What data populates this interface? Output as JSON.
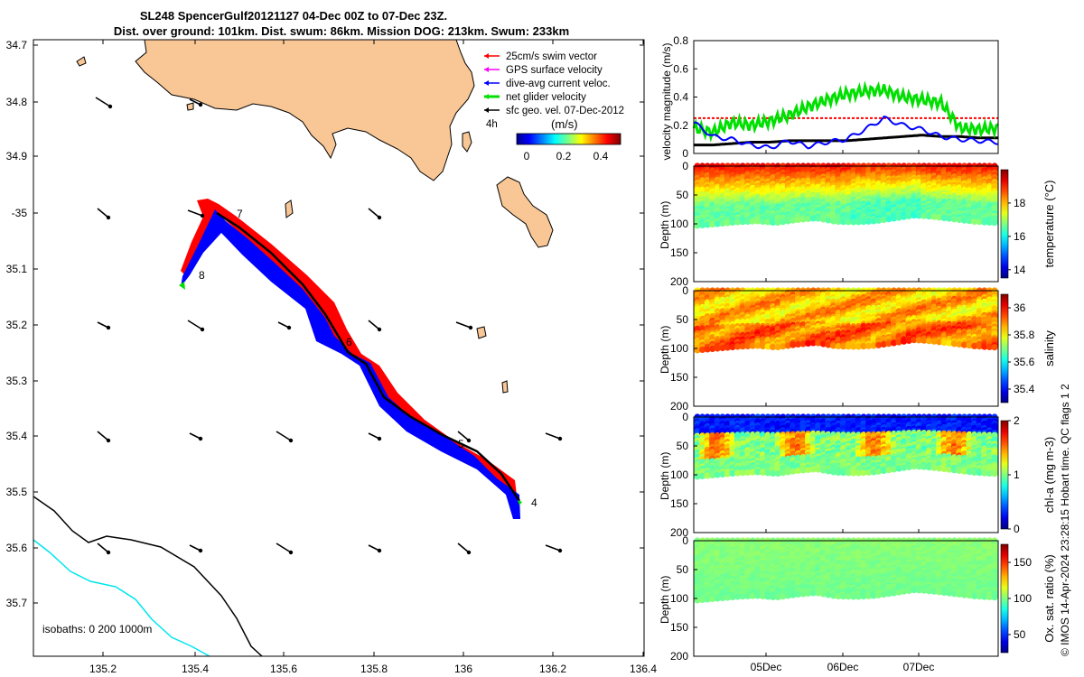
{
  "title": {
    "line1": "SL248 SpencerGulf20121127 04-Dec 00Z to 07-Dec 23Z.",
    "line2": "Dist. over ground: 101km. Dist. swum: 86km. Mission DOG: 213km. Swum: 233km"
  },
  "colors": {
    "land": "#f9c796",
    "swim": "#ff0000",
    "gps": "#ff00ff",
    "current": "#0000ff",
    "net": "#00e000",
    "geo": "#000000",
    "isobath_200": "#000000",
    "isobath_1000": "#00e5ee"
  },
  "map": {
    "lat_ticks": [
      "34.7",
      "34.8",
      "34.9",
      "-35",
      "35.1",
      "35.2",
      "35.3",
      "35.4",
      "35.5",
      "35.6",
      "35.7"
    ],
    "lon_ticks": [
      "135.2",
      "135.4",
      "135.6",
      "135.8",
      "136",
      "136.2",
      "136.4"
    ],
    "legend": [
      {
        "label": "25cm/s swim vector",
        "color": "#ff0000"
      },
      {
        "label": "GPS surface velocity",
        "color": "#ff00ff"
      },
      {
        "label": "dive-avg current veloc.",
        "color": "#0000ff"
      },
      {
        "label": "net glider velocity",
        "color": "#00e000"
      },
      {
        "label": "sfc geo. vel. 07-Dec-2012",
        "color": "#000000"
      }
    ],
    "speed_scale": {
      "label": "(m/s)",
      "ticks": [
        "0",
        "0.2",
        "0.4"
      ]
    },
    "interval_label": "4h",
    "day_labels": [
      "4",
      "5",
      "6",
      "7",
      "8"
    ],
    "isobaths_label": "isobaths: 0   200  1000m"
  },
  "chart_data": [
    {
      "type": "line",
      "ylabel": "velocity magnitude (m/s)",
      "ylim": [
        0,
        0.8
      ],
      "yticks": [
        "0",
        "0.2",
        "0.4",
        "0.6",
        "0.8"
      ],
      "x": [
        0,
        0.25,
        0.5,
        0.75,
        1.0,
        1.25,
        1.5,
        1.75,
        2.0,
        2.25,
        2.5,
        2.75,
        3.0,
        3.25,
        3.5,
        3.75,
        4.0
      ],
      "series": [
        {
          "name": "net glider velocity",
          "color": "#00e000",
          "values": [
            0.18,
            0.15,
            0.22,
            0.2,
            0.23,
            0.27,
            0.33,
            0.38,
            0.42,
            0.44,
            0.45,
            0.4,
            0.38,
            0.36,
            0.18,
            0.17,
            0.18
          ]
        },
        {
          "name": "25cm/s swim vector",
          "color": "#ff0000",
          "values": [
            0.25,
            0.25,
            0.25,
            0.25,
            0.25,
            0.25,
            0.25,
            0.25,
            0.25,
            0.25,
            0.25,
            0.25,
            0.25,
            0.25,
            0.25,
            0.25,
            0.25
          ]
        },
        {
          "name": "dive-avg current veloc.",
          "color": "#0000ff",
          "values": [
            0.22,
            0.12,
            0.1,
            0.06,
            0.04,
            0.09,
            0.05,
            0.08,
            0.1,
            0.17,
            0.25,
            0.2,
            0.17,
            0.12,
            0.1,
            0.09,
            0.08
          ]
        },
        {
          "name": "sfc geo. vel.",
          "color": "#000000",
          "values": [
            0.06,
            0.06,
            0.07,
            0.08,
            0.08,
            0.09,
            0.09,
            0.09,
            0.09,
            0.1,
            0.11,
            0.12,
            0.13,
            0.12,
            0.12,
            0.11,
            0.11
          ]
        }
      ]
    },
    {
      "type": "heatmap",
      "ylabel": "Depth (m)",
      "ylim": [
        200,
        0
      ],
      "yticks": [
        "0",
        "50",
        "100",
        "150",
        "200"
      ],
      "colorbar_label": "temperature (°C)",
      "colorbar_ticks": [
        "14",
        "16",
        "18"
      ],
      "range": [
        13.5,
        20
      ],
      "bottom_depth": [
        103,
        100,
        97,
        95,
        98,
        93,
        90,
        96,
        97,
        95,
        90,
        85,
        88,
        92,
        96,
        98
      ],
      "surface": 19.2,
      "bottom": 16.6
    },
    {
      "type": "heatmap",
      "ylabel": "Depth (m)",
      "ylim": [
        200,
        0
      ],
      "yticks": [
        "0",
        "50",
        "100",
        "150",
        "200"
      ],
      "colorbar_label": "salinity",
      "colorbar_ticks": [
        "35.4",
        "35.6",
        "35.8",
        "36"
      ],
      "range": [
        35.3,
        36.1
      ],
      "bottom_depth": [
        103,
        100,
        97,
        95,
        98,
        93,
        90,
        96,
        97,
        95,
        90,
        85,
        88,
        92,
        96,
        98
      ],
      "surface": 35.85,
      "bottom": 35.92
    },
    {
      "type": "heatmap",
      "ylabel": "Depth (m)",
      "ylim": [
        200,
        0
      ],
      "yticks": [
        "0",
        "50",
        "100",
        "150",
        "200"
      ],
      "colorbar_label": "chl-a (mg m-3)",
      "colorbar_ticks": [
        "0",
        "1",
        "2"
      ],
      "range": [
        0,
        2
      ],
      "bottom_depth": [
        103,
        100,
        97,
        95,
        98,
        93,
        90,
        96,
        97,
        95,
        90,
        85,
        88,
        92,
        96,
        98
      ],
      "surface": 0.35,
      "bottom": 1.0
    },
    {
      "type": "heatmap",
      "ylabel": "Depth (m)",
      "ylim": [
        200,
        0
      ],
      "yticks": [
        "0",
        "50",
        "100",
        "150",
        "200"
      ],
      "colorbar_label": "Ox. sat. ratio (%)",
      "colorbar_ticks": [
        "50",
        "100",
        "150"
      ],
      "range": [
        25,
        175
      ],
      "bottom_depth": [
        103,
        100,
        97,
        95,
        98,
        93,
        90,
        96,
        97,
        95,
        90,
        85,
        88,
        92,
        96,
        98
      ],
      "surface": 102,
      "bottom": 100
    }
  ],
  "time_axis": {
    "ticks": [
      "05Dec",
      "06Dec",
      "07Dec"
    ]
  },
  "side_note": "© IMOS 14-Apr-2024 23:28:15 Hobart time. QC flags 1  2"
}
